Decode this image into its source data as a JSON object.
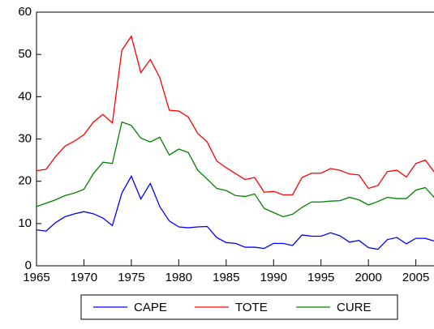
{
  "chart_data": {
    "type": "line",
    "x": [
      1965,
      1966,
      1967,
      1968,
      1969,
      1970,
      1971,
      1972,
      1973,
      1974,
      1975,
      1976,
      1977,
      1978,
      1979,
      1980,
      1981,
      1982,
      1983,
      1984,
      1985,
      1986,
      1987,
      1988,
      1989,
      1990,
      1991,
      1992,
      1993,
      1994,
      1995,
      1996,
      1997,
      1998,
      1999,
      2000,
      2001,
      2002,
      2003,
      2004,
      2005,
      2006,
      2007
    ],
    "series": [
      {
        "name": "CAPE",
        "color": "#0000ff",
        "values": [
          8.5,
          8.2,
          10.2,
          11.6,
          12.3,
          12.8,
          12.3,
          11.3,
          9.5,
          17.2,
          21.2,
          15.8,
          19.5,
          14,
          10.6,
          9.2,
          9.0,
          9.2,
          9.3,
          6.7,
          5.5,
          5.3,
          4.4,
          4.4,
          4.1,
          5.3,
          5.3,
          4.8,
          7.3,
          7.0,
          7.0,
          7.8,
          7.1,
          5.6,
          6.0,
          4.3,
          3.9,
          6.2,
          6.7,
          5.2,
          6.5,
          6.5,
          5.8
        ]
      },
      {
        "name": "TOTE",
        "color": "#ff0000",
        "values": [
          22.5,
          22.8,
          25.8,
          28.3,
          29.5,
          31,
          34,
          35.8,
          33.8,
          51,
          54.3,
          45.7,
          48.8,
          44.5,
          36.8,
          36.6,
          35.2,
          31.3,
          29.3,
          24.8,
          23.2,
          21.8,
          20.4,
          20.9,
          17.4,
          17.6,
          16.8,
          16.8,
          20.9,
          21.9,
          21.9,
          23,
          22.6,
          21.7,
          21.5,
          18.3,
          19,
          22.3,
          22.6,
          21,
          24.2,
          25,
          22
        ]
      },
      {
        "name": "CURE",
        "color": "#008000",
        "values": [
          14,
          14.8,
          15.6,
          16.6,
          17.2,
          18.1,
          21.8,
          24.5,
          24.2,
          34,
          33.2,
          30.2,
          29.3,
          30.4,
          26.2,
          27.6,
          26.8,
          22.6,
          20.5,
          18.3,
          17.8,
          16.6,
          16.4,
          17.0,
          13.6,
          12.6,
          11.6,
          12.2,
          13.8,
          15.1,
          15.1,
          15.3,
          15.4,
          16.2,
          15.6,
          14.4,
          15.2,
          16.2,
          15.9,
          15.9,
          17.9,
          18.5,
          16
        ]
      }
    ],
    "xlim": [
      1965,
      2007
    ],
    "xticks": [
      1965,
      1970,
      1975,
      1980,
      1985,
      1990,
      1995,
      2000,
      2005
    ],
    "ylim": [
      0,
      60
    ],
    "yticks": [
      0,
      10,
      20,
      30,
      40,
      50,
      60
    ],
    "grid": false
  }
}
